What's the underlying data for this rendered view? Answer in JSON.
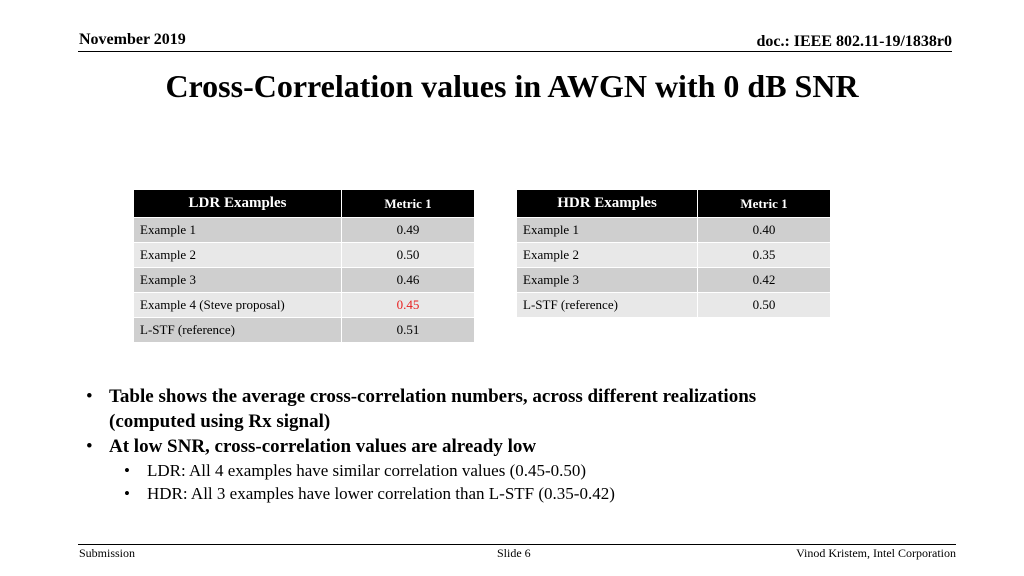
{
  "header": {
    "date": "November 2019",
    "doc": "doc.: IEEE 802.11-19/1838r0"
  },
  "title": "Cross-Correlation values in AWGN with 0 dB SNR",
  "ldr_table": {
    "headers": [
      "LDR Examples",
      "Metric 1"
    ],
    "rows": [
      {
        "label": "Example 1",
        "value": "0.49"
      },
      {
        "label": "Example 2",
        "value": "0.50"
      },
      {
        "label": "Example 3",
        "value": "0.46"
      },
      {
        "label": "Example 4 (Steve proposal)",
        "value": "0.45"
      },
      {
        "label": "L-STF (reference)",
        "value": "0.51"
      }
    ]
  },
  "hdr_table": {
    "headers": [
      "HDR Examples",
      "Metric 1"
    ],
    "rows": [
      {
        "label": "Example 1",
        "value": "0.40"
      },
      {
        "label": "Example 2",
        "value": "0.35"
      },
      {
        "label": "Example 3",
        "value": "0.42"
      },
      {
        "label": "L-STF (reference)",
        "value": "0.50"
      }
    ]
  },
  "highlight_color": "#e81e1e",
  "bullets": {
    "b1_line1": "Table shows the average cross-correlation numbers, across different realizations",
    "b1_line2": "(computed using Rx signal)",
    "b2": "At low SNR, cross-correlation values are already low",
    "sub1": "LDR: All 4 examples have similar correlation values (0.45-0.50)",
    "sub2": "HDR: All 3 examples have lower correlation than L-STF (0.35-0.42)",
    "bullet_char": "•"
  },
  "footer": {
    "left": "Submission",
    "slide": "Slide 6",
    "right": "Vinod Kristem, Intel Corporation"
  }
}
